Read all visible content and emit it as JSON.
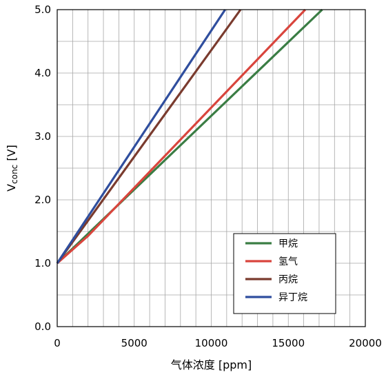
{
  "chart_data": {
    "type": "line",
    "xlabel": "气体浓度 [ppm]",
    "ylabel_main": "V",
    "ylabel_sub": "conc",
    "ylabel_tail": " [V]",
    "xlim": [
      0,
      20000
    ],
    "ylim": [
      0.0,
      5.0
    ],
    "x_ticks": [
      "0",
      "5000",
      "10000",
      "15000",
      "20000"
    ],
    "y_ticks": [
      "0.0",
      "1.0",
      "2.0",
      "3.0",
      "4.0",
      "5.0"
    ],
    "grid": true,
    "legend_position": "bottom-right",
    "series": [
      {
        "name": "甲烷",
        "color": "#3a7d44",
        "x": [
          0,
          17200
        ],
        "y": [
          1.0,
          5.0
        ]
      },
      {
        "name": "氢气",
        "color": "#d9453d",
        "x": [
          0,
          2000,
          16100
        ],
        "y": [
          1.0,
          1.43,
          5.0
        ]
      },
      {
        "name": "丙烷",
        "color": "#7a3b2e",
        "x": [
          0,
          11900
        ],
        "y": [
          1.0,
          5.0
        ]
      },
      {
        "name": "异丁烷",
        "color": "#2f4e9e",
        "x": [
          0,
          10900
        ],
        "y": [
          1.0,
          5.0
        ]
      }
    ]
  }
}
